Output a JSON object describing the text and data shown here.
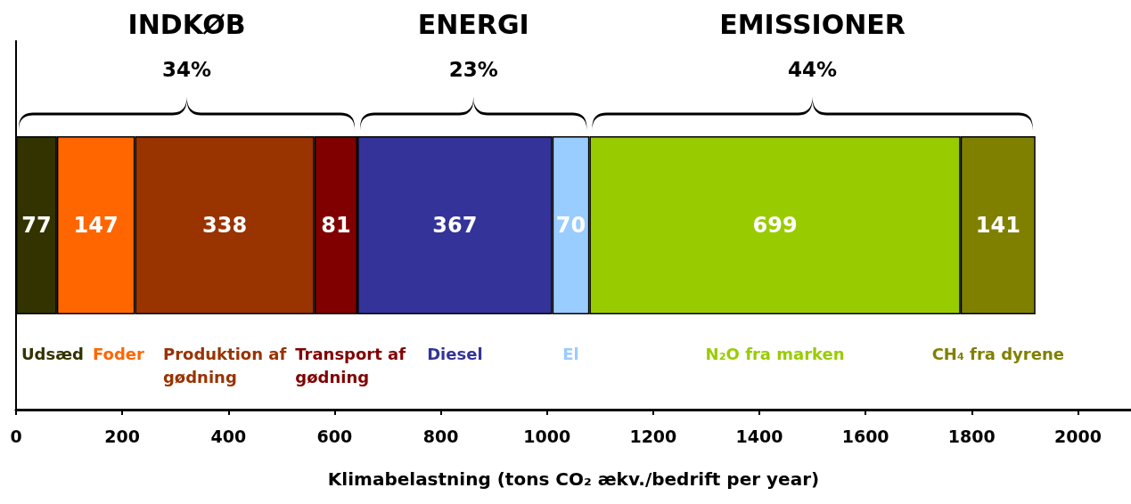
{
  "chart_data": {
    "type": "bar",
    "orientation": "horizontal",
    "stacked": true,
    "data_labels": true,
    "legend": false,
    "grid": false,
    "categories": [
      null
    ],
    "series": [
      {
        "name": "Udsæd",
        "color": "#333300",
        "values": [
          77
        ]
      },
      {
        "name": "Foder",
        "color": "#ff6600",
        "values": [
          147
        ]
      },
      {
        "name": "Produktion af gødning",
        "color": "#993300",
        "values": [
          338
        ]
      },
      {
        "name": "Transport af gødning",
        "color": "#800000",
        "values": [
          81
        ]
      },
      {
        "name": "Diesel",
        "color": "#333399",
        "values": [
          367
        ]
      },
      {
        "name": "El",
        "color": "#99ccff",
        "values": [
          70
        ]
      },
      {
        "name": "N₂O fra marken",
        "color": "#99cc00",
        "values": [
          699
        ]
      },
      {
        "name": "CH₄ fra dyrene",
        "color": "#808000",
        "values": [
          141
        ]
      }
    ],
    "xlabel": "Klimabelastning (tons CO₂ ækv./bedrift per year)",
    "xlim": [
      0,
      2100
    ],
    "xticks": [
      0,
      200,
      400,
      600,
      800,
      1000,
      1200,
      1400,
      1600,
      1800,
      2000
    ],
    "annotations": [
      "INDKØB",
      "34%",
      "ENERGI",
      "23%",
      "EMISSIONER",
      "44%"
    ]
  }
}
